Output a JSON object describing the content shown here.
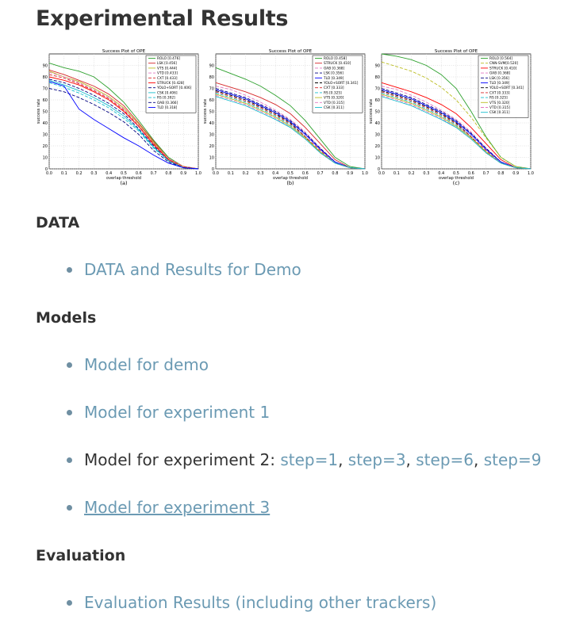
{
  "page": {
    "title": "Experimental Results",
    "sections": [
      {
        "heading": "DATA"
      },
      {
        "heading": "Models"
      },
      {
        "heading": "Evaluation"
      }
    ],
    "data_links": [
      "DATA and Results for Demo"
    ],
    "models_links": {
      "demo": "Model for demo",
      "exp1": "Model for experiment 1",
      "exp2_prefix": "Model for experiment 2:",
      "exp2_steps": [
        "step=1",
        "step=3",
        "step=6",
        "step=9"
      ],
      "exp3": "Model for experiment 3"
    },
    "evaluation_links": [
      "Evaluation Results (including other trackers)"
    ],
    "colors": {
      "heading": "#333333",
      "link": "#6b9ab3",
      "bullet": "#6f8fa2"
    }
  },
  "chart_data": [
    {
      "type": "line",
      "title": "Success Plot of OPE",
      "xlabel": "overlap threshold",
      "ylabel": "success rate",
      "caption": "(a)",
      "xlim": [
        0,
        1
      ],
      "ylim": [
        0,
        100
      ],
      "x_ticks": [
        "0.0",
        "0.1",
        "0.2",
        "0.3",
        "0.4",
        "0.5",
        "0.6",
        "0.7",
        "0.8",
        "0.9",
        "1.0"
      ],
      "y_ticks": [
        "0",
        "10",
        "20",
        "30",
        "40",
        "50",
        "60",
        "70",
        "80",
        "90"
      ],
      "legend_position": "top-right",
      "x": [
        0,
        0.1,
        0.2,
        0.3,
        0.4,
        0.5,
        0.6,
        0.7,
        0.8,
        0.9,
        1.0
      ],
      "series": [
        {
          "name": "ROLO [0.476]",
          "color": "#2ca02c",
          "dash": "",
          "values": [
            92,
            88,
            85,
            80,
            70,
            58,
            42,
            25,
            10,
            2,
            0
          ]
        },
        {
          "name": "LSK [0.456]",
          "color": "#d62728",
          "dash": "",
          "values": [
            86,
            82,
            77,
            72,
            65,
            55,
            40,
            24,
            9,
            2,
            0
          ]
        },
        {
          "name": "VTS [0.444]",
          "color": "#bcbd22",
          "dash": "",
          "values": [
            85,
            80,
            76,
            70,
            63,
            53,
            39,
            23,
            9,
            2,
            0
          ]
        },
        {
          "name": "VTD [0.433]",
          "color": "#e377c2",
          "dash": "4,2",
          "values": [
            84,
            80,
            75,
            69,
            62,
            52,
            38,
            22,
            9,
            2,
            0
          ]
        },
        {
          "name": "CXT [0.433]",
          "color": "#d62728",
          "dash": "4,2",
          "values": [
            82,
            79,
            74,
            68,
            61,
            51,
            37,
            22,
            8,
            2,
            0
          ]
        },
        {
          "name": "STRUCK [0.428]",
          "color": "#ff0000",
          "dash": "",
          "values": [
            80,
            77,
            73,
            67,
            60,
            50,
            37,
            21,
            8,
            1,
            0
          ]
        },
        {
          "name": "YOLO+SORT [0.406]",
          "color": "#000080",
          "dash": "4,2",
          "values": [
            78,
            75,
            70,
            64,
            57,
            48,
            35,
            20,
            7,
            1,
            0
          ]
        },
        {
          "name": "CSK [0.406]",
          "color": "#17becf",
          "dash": "",
          "values": [
            77,
            73,
            68,
            62,
            55,
            46,
            34,
            19,
            7,
            1,
            0
          ]
        },
        {
          "name": "RS [0.392]",
          "color": "#17becf",
          "dash": "4,2",
          "values": [
            75,
            71,
            66,
            60,
            53,
            44,
            33,
            18,
            7,
            1,
            0
          ]
        },
        {
          "name": "OAB [0.366]",
          "color": "#000080",
          "dash": "4,2",
          "values": [
            70,
            67,
            62,
            56,
            49,
            41,
            30,
            16,
            6,
            1,
            0
          ]
        },
        {
          "name": "TLD [0.318]",
          "color": "#0000ff",
          "dash": "",
          "values": [
            76,
            72,
            52,
            43,
            35,
            27,
            20,
            12,
            5,
            1,
            0
          ]
        }
      ]
    },
    {
      "type": "line",
      "title": "Success Plot of OPE",
      "xlabel": "overlap threshold",
      "ylabel": "success rate",
      "caption": "(b)",
      "xlim": [
        0,
        1
      ],
      "ylim": [
        0,
        100
      ],
      "x_ticks": [
        "0.0",
        "0.1",
        "0.2",
        "0.3",
        "0.4",
        "0.5",
        "0.6",
        "0.7",
        "0.8",
        "0.9",
        "1.0"
      ],
      "y_ticks": [
        "0",
        "10",
        "20",
        "30",
        "40",
        "50",
        "60",
        "70",
        "80",
        "90"
      ],
      "legend_position": "top-right",
      "x": [
        0,
        0.1,
        0.2,
        0.3,
        0.4,
        0.5,
        0.6,
        0.7,
        0.8,
        0.9,
        1.0
      ],
      "series": [
        {
          "name": "ROLO [0.458]",
          "color": "#2ca02c",
          "dash": "",
          "values": [
            88,
            83,
            78,
            72,
            64,
            55,
            42,
            26,
            10,
            2,
            0
          ]
        },
        {
          "name": "STRUCK [0.410]",
          "color": "#d62728",
          "dash": "",
          "values": [
            75,
            71,
            67,
            62,
            56,
            48,
            36,
            22,
            8,
            1,
            0
          ]
        },
        {
          "name": "OAB [0.368]",
          "color": "#e377c2",
          "dash": "4,2",
          "values": [
            72,
            69,
            64,
            58,
            51,
            43,
            32,
            18,
            6,
            1,
            0
          ]
        },
        {
          "name": "LSK [0.356]",
          "color": "#000080",
          "dash": "4,2",
          "values": [
            70,
            66,
            62,
            56,
            50,
            42,
            31,
            18,
            6,
            1,
            0
          ]
        },
        {
          "name": "TLD [0.349]",
          "color": "#0000ff",
          "dash": "",
          "values": [
            69,
            65,
            61,
            55,
            49,
            41,
            30,
            17,
            6,
            1,
            0
          ]
        },
        {
          "name": "YOLO+SORT [0.341]",
          "color": "#000000",
          "dash": "4,2",
          "values": [
            68,
            64,
            60,
            54,
            48,
            40,
            28,
            14,
            5,
            1,
            0
          ]
        },
        {
          "name": "CXT [0.333]",
          "color": "#d62728",
          "dash": "4,2",
          "values": [
            67,
            63,
            59,
            53,
            47,
            39,
            28,
            16,
            5,
            1,
            0
          ]
        },
        {
          "name": "RS [0.325]",
          "color": "#17becf",
          "dash": "4,2",
          "values": [
            66,
            62,
            58,
            52,
            46,
            38,
            27,
            15,
            5,
            1,
            0
          ]
        },
        {
          "name": "VTS [0.320]",
          "color": "#bcbd22",
          "dash": "",
          "values": [
            65,
            61,
            57,
            51,
            45,
            37,
            27,
            15,
            5,
            1,
            0
          ]
        },
        {
          "name": "VTD [0.315]",
          "color": "#e377c2",
          "dash": "4,2",
          "values": [
            64,
            60,
            56,
            50,
            44,
            36,
            26,
            14,
            5,
            1,
            0
          ]
        },
        {
          "name": "CSK [0.311]",
          "color": "#17becf",
          "dash": "",
          "values": [
            63,
            59,
            55,
            49,
            43,
            36,
            26,
            14,
            5,
            1,
            0
          ]
        }
      ]
    },
    {
      "type": "line",
      "title": "Success Plot of OPE",
      "xlabel": "overlap threshold",
      "ylabel": "success rate",
      "caption": "(c)",
      "xlim": [
        0,
        1
      ],
      "ylim": [
        0,
        100
      ],
      "x_ticks": [
        "0.0",
        "0.1",
        "0.2",
        "0.3",
        "0.4",
        "0.5",
        "0.6",
        "0.7",
        "0.8",
        "0.9",
        "1.0"
      ],
      "y_ticks": [
        "0",
        "10",
        "20",
        "30",
        "40",
        "50",
        "60",
        "70",
        "80",
        "90"
      ],
      "legend_position": "top-right",
      "x": [
        0,
        0.1,
        0.2,
        0.3,
        0.4,
        0.5,
        0.6,
        0.7,
        0.8,
        0.9,
        1.0
      ],
      "series": [
        {
          "name": "ROLO [0.564]",
          "color": "#2ca02c",
          "dash": "",
          "values": [
            100,
            98,
            95,
            90,
            82,
            70,
            50,
            28,
            10,
            2,
            0
          ]
        },
        {
          "name": "CNN-SVM[0.520]",
          "color": "#bcbd22",
          "dash": "4,2",
          "values": [
            93,
            89,
            85,
            79,
            71,
            60,
            45,
            27,
            10,
            2,
            0
          ]
        },
        {
          "name": "STRUCK [0.410]",
          "color": "#ff0000",
          "dash": "",
          "values": [
            75,
            71,
            67,
            62,
            56,
            48,
            36,
            22,
            8,
            1,
            0
          ]
        },
        {
          "name": "OAB [0.368]",
          "color": "#e377c2",
          "dash": "4,2",
          "values": [
            72,
            69,
            64,
            58,
            51,
            43,
            32,
            18,
            6,
            1,
            0
          ]
        },
        {
          "name": "LSK [0.356]",
          "color": "#000080",
          "dash": "4,2",
          "values": [
            70,
            66,
            62,
            56,
            50,
            42,
            31,
            18,
            6,
            1,
            0
          ]
        },
        {
          "name": "TLD [0.349]",
          "color": "#0000ff",
          "dash": "",
          "values": [
            69,
            65,
            61,
            55,
            49,
            41,
            30,
            17,
            6,
            1,
            0
          ]
        },
        {
          "name": "YOLO+SORT [0.341]",
          "color": "#000000",
          "dash": "4,2",
          "values": [
            68,
            64,
            60,
            54,
            48,
            40,
            28,
            14,
            5,
            1,
            0
          ]
        },
        {
          "name": "CXT [0.333]",
          "color": "#d62728",
          "dash": "4,2",
          "values": [
            67,
            63,
            59,
            53,
            47,
            39,
            28,
            16,
            5,
            1,
            0
          ]
        },
        {
          "name": "RS [0.325]",
          "color": "#17becf",
          "dash": "4,2",
          "values": [
            66,
            62,
            58,
            52,
            46,
            38,
            27,
            15,
            5,
            1,
            0
          ]
        },
        {
          "name": "VTS [0.320]",
          "color": "#bcbd22",
          "dash": "",
          "values": [
            65,
            61,
            57,
            51,
            45,
            37,
            27,
            15,
            5,
            1,
            0
          ]
        },
        {
          "name": "VTD [0.315]",
          "color": "#e377c2",
          "dash": "4,2",
          "values": [
            64,
            60,
            56,
            50,
            44,
            36,
            26,
            14,
            5,
            1,
            0
          ]
        },
        {
          "name": "CSK [0.311]",
          "color": "#17becf",
          "dash": "",
          "values": [
            63,
            59,
            55,
            49,
            43,
            36,
            26,
            14,
            5,
            1,
            0
          ]
        }
      ]
    }
  ]
}
